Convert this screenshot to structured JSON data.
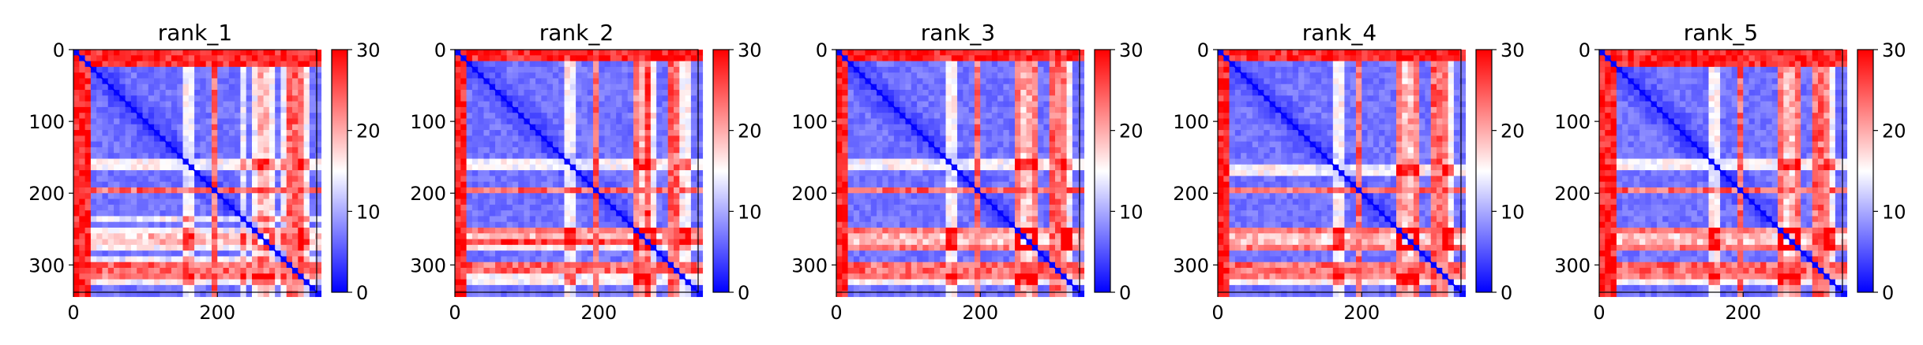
{
  "chart_data": [
    {
      "type": "heatmap",
      "title": "rank_1",
      "x_ticks": [
        0,
        200
      ],
      "y_ticks": [
        0,
        100,
        200,
        300
      ],
      "xlim": [
        0,
        338
      ],
      "ylim": [
        338,
        0
      ],
      "colorbar": {
        "ticks": [
          0,
          10,
          20,
          30
        ],
        "range": [
          0,
          30
        ],
        "colormap": "bwr"
      },
      "bands": {
        "top_rows": [
          0,
          18
        ],
        "left_cols": [
          0,
          10
        ],
        "horizontal_red_rows": [
          191,
          300
        ],
        "white_ish_rows": [
          155,
          248,
          272,
          315
        ],
        "white_ish_cols": [
          232,
          285,
          315
        ],
        "block_rows": [
          250,
          270
        ]
      }
    },
    {
      "type": "heatmap",
      "title": "rank_2",
      "x_ticks": [
        0,
        200
      ],
      "y_ticks": [
        0,
        100,
        200,
        300
      ],
      "xlim": [
        0,
        338
      ],
      "ylim": [
        338,
        0
      ],
      "colorbar": {
        "ticks": [
          0,
          10,
          20,
          30
        ],
        "range": [
          0,
          30
        ],
        "colormap": "bwr"
      },
      "bands": {
        "top_rows": [
          0,
          15
        ],
        "left_cols": [
          0,
          8
        ],
        "horizontal_red_rows": [
          191,
          300
        ],
        "white_ish_rows": [
          155,
          248,
          272,
          315
        ],
        "white_ish_cols": [
          248,
          265,
          300
        ],
        "block_rows": [
          250,
          270
        ]
      }
    },
    {
      "type": "heatmap",
      "title": "rank_3",
      "x_ticks": [
        0,
        200
      ],
      "y_ticks": [
        0,
        100,
        200,
        300
      ],
      "xlim": [
        0,
        338
      ],
      "ylim": [
        338,
        0
      ],
      "colorbar": {
        "ticks": [
          0,
          10,
          20,
          30
        ],
        "range": [
          0,
          30
        ],
        "colormap": "bwr"
      },
      "bands": {
        "top_rows": [
          0,
          16
        ],
        "left_cols": [
          0,
          10
        ],
        "horizontal_red_rows": [
          191,
          300
        ],
        "white_ish_rows": [
          155,
          248,
          272,
          315
        ],
        "white_ish_cols": [
          248,
          270,
          315
        ],
        "block_rows": [
          250,
          270
        ]
      }
    },
    {
      "type": "heatmap",
      "title": "rank_4",
      "x_ticks": [
        0,
        200
      ],
      "y_ticks": [
        0,
        100,
        200,
        300
      ],
      "xlim": [
        0,
        338
      ],
      "ylim": [
        338,
        0
      ],
      "colorbar": {
        "ticks": [
          0,
          10,
          20,
          30
        ],
        "range": [
          0,
          30
        ],
        "colormap": "bwr"
      },
      "bands": {
        "top_rows": [
          0,
          16
        ],
        "left_cols": [
          0,
          10
        ],
        "horizontal_red_rows": [
          191,
          300
        ],
        "white_ish_rows": [
          165,
          248,
          272,
          315
        ],
        "white_ish_cols": [
          248,
          270,
          315
        ],
        "block_rows": [
          250,
          270
        ]
      }
    },
    {
      "type": "heatmap",
      "title": "rank_5",
      "x_ticks": [
        0,
        200
      ],
      "y_ticks": [
        0,
        100,
        200,
        300
      ],
      "xlim": [
        0,
        338
      ],
      "ylim": [
        338,
        0
      ],
      "colorbar": {
        "ticks": [
          0,
          10,
          20,
          30
        ],
        "range": [
          0,
          30
        ],
        "colormap": "bwr"
      },
      "bands": {
        "top_rows": [
          0,
          18
        ],
        "left_cols": [
          0,
          12
        ],
        "horizontal_red_rows": [
          191,
          300
        ],
        "white_ish_rows": [
          155,
          248,
          272,
          315
        ],
        "white_ish_cols": [
          250,
          270,
          310
        ],
        "block_rows": [
          252,
          270
        ]
      }
    }
  ]
}
